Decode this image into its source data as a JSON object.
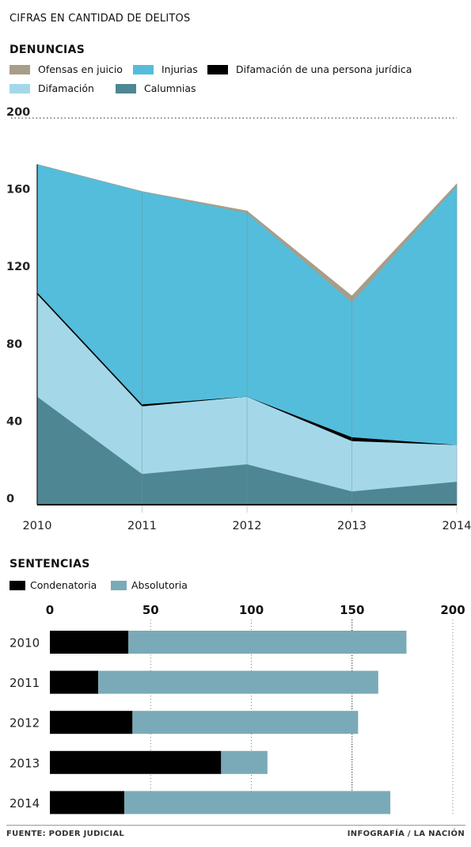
{
  "header": {
    "title": "CIFRAS EN CANTIDAD DE DELITOS"
  },
  "footer": {
    "source": "FUENTE: PODER JUDICIAL",
    "credit": "INFOGRAFÍA  /  LA NACIÓN"
  },
  "colors": {
    "calumnias": "#4e8793",
    "difamacion": "#a4d8e9",
    "difamacion_juridica": "#000000",
    "injurias": "#54bddb",
    "ofensas": "#a89d88",
    "condenatoria": "#000000",
    "absolutoria": "#7aaab8"
  },
  "chart_data": [
    {
      "type": "area",
      "title": "DENUNCIAS",
      "stacked": true,
      "x": [
        "2010",
        "2011",
        "2012",
        "2013",
        "2014"
      ],
      "ylim": [
        0,
        200
      ],
      "yticks": [
        0,
        40,
        80,
        120,
        160,
        200
      ],
      "grid": "vertical lines at each year, dotted line at 200",
      "legend_position": "top",
      "legend": [
        "Ofensas en juicio",
        "Injurias",
        "Difamación de una persona jurídica",
        "Difamación",
        "Calumnias"
      ],
      "series": [
        {
          "name": "Calumnias",
          "key": "calumnias",
          "values": [
            56,
            16,
            21,
            7,
            12
          ]
        },
        {
          "name": "Difamación",
          "key": "difamacion",
          "values": [
            53,
            35,
            35,
            26,
            19
          ]
        },
        {
          "name": "Difamación de una persona jurídica",
          "key": "difamacion_juridica",
          "values": [
            1,
            1,
            0,
            2,
            0
          ]
        },
        {
          "name": "Injurias",
          "key": "injurias",
          "values": [
            66,
            110,
            95,
            70,
            134
          ]
        },
        {
          "name": "Ofensas en juicio",
          "key": "ofensas",
          "values": [
            0,
            0,
            1,
            3,
            1
          ]
        }
      ]
    },
    {
      "type": "bar",
      "orientation": "horizontal",
      "stacked": true,
      "title": "SENTENCIAS",
      "categories": [
        "2010",
        "2011",
        "2012",
        "2013",
        "2014"
      ],
      "xlim": [
        0,
        200
      ],
      "xticks": [
        0,
        50,
        100,
        150,
        200
      ],
      "legend_position": "top-left",
      "legend": [
        "Condenatoria",
        "Absolutoria"
      ],
      "series": [
        {
          "name": "Condenatoria",
          "key": "condenatoria",
          "values": [
            39,
            24,
            41,
            85,
            37
          ]
        },
        {
          "name": "Absolutoria",
          "key": "absolutoria",
          "values": [
            138,
            139,
            112,
            23,
            132
          ]
        }
      ]
    }
  ]
}
